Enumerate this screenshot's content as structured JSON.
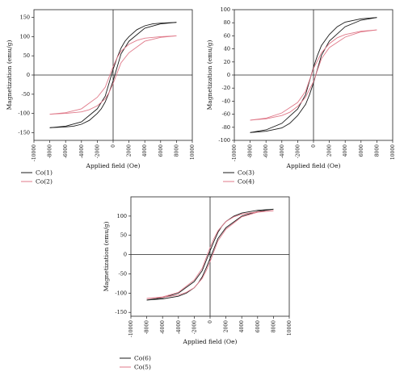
{
  "chart_data": [
    {
      "type": "line",
      "xlabel": "Applied field (Oe)",
      "ylabel": "Magnetization (emu/g)",
      "xlim": [
        -10000,
        10000
      ],
      "ylim": [
        -170,
        170
      ],
      "xticks": [
        "-10000",
        "-8000",
        "-6000",
        "-4000",
        "-2000",
        "0",
        "2000",
        "4000",
        "6000",
        "8000",
        "10000"
      ],
      "yticks": [
        "-150",
        "-100",
        "-50",
        "0",
        "50",
        "100",
        "150"
      ],
      "legend_position": "bottom-left",
      "series": [
        {
          "name": "Co(1)",
          "color": "#1a1a1a",
          "upper": [
            [
              -8000,
              -137
            ],
            [
              -6000,
              -133
            ],
            [
              -4000,
              -122
            ],
            [
              -2000,
              -88
            ],
            [
              -1000,
              -55
            ],
            [
              0,
              15
            ],
            [
              500,
              45
            ],
            [
              1000,
              70
            ],
            [
              1500,
              88
            ],
            [
              2000,
              100
            ],
            [
              3000,
              118
            ],
            [
              4000,
              128
            ],
            [
              5000,
              133
            ],
            [
              6000,
              135
            ],
            [
              8000,
              137
            ]
          ],
          "lower": [
            [
              -8000,
              -137
            ],
            [
              -6000,
              -135
            ],
            [
              -5000,
              -133
            ],
            [
              -4000,
              -128
            ],
            [
              -3000,
              -118
            ],
            [
              -2000,
              -100
            ],
            [
              -1500,
              -88
            ],
            [
              -1000,
              -70
            ],
            [
              -500,
              -45
            ],
            [
              0,
              -15
            ],
            [
              1000,
              55
            ],
            [
              2000,
              88
            ],
            [
              4000,
              122
            ],
            [
              6000,
              133
            ],
            [
              8000,
              137
            ]
          ]
        },
        {
          "name": "Co(2)",
          "color": "#e07a8a",
          "upper": [
            [
              -8000,
              -102
            ],
            [
              -6000,
              -98
            ],
            [
              -4000,
              -88
            ],
            [
              -2000,
              -58
            ],
            [
              -1000,
              -32
            ],
            [
              0,
              22
            ],
            [
              500,
              45
            ],
            [
              1000,
              62
            ],
            [
              2000,
              80
            ],
            [
              3000,
              90
            ],
            [
              4000,
              96
            ],
            [
              6000,
              100
            ],
            [
              8000,
              102
            ]
          ],
          "lower": [
            [
              -8000,
              -102
            ],
            [
              -6000,
              -100
            ],
            [
              -4000,
              -96
            ],
            [
              -3000,
              -90
            ],
            [
              -2000,
              -80
            ],
            [
              -1000,
              -62
            ],
            [
              -500,
              -45
            ],
            [
              0,
              -22
            ],
            [
              1000,
              32
            ],
            [
              2000,
              58
            ],
            [
              4000,
              88
            ],
            [
              6000,
              98
            ],
            [
              8000,
              102
            ]
          ]
        }
      ]
    },
    {
      "type": "line",
      "xlabel": "Applied field (Oe)",
      "ylabel": "Magnetization (emu/g)",
      "xlim": [
        -10000,
        10000
      ],
      "ylim": [
        -100,
        100
      ],
      "xticks": [
        "-10000",
        "-8000",
        "-6000",
        "-4000",
        "-2000",
        "0",
        "2000",
        "4000",
        "6000",
        "8000",
        "10000"
      ],
      "yticks": [
        "-100",
        "-80",
        "-60",
        "-40",
        "-20",
        "0",
        "20",
        "40",
        "60",
        "80",
        "100"
      ],
      "legend_position": "bottom-left",
      "series": [
        {
          "name": "Co(3)",
          "color": "#1a1a1a",
          "upper": [
            [
              -8000,
              -88
            ],
            [
              -6000,
              -84
            ],
            [
              -4000,
              -74
            ],
            [
              -2000,
              -52
            ],
            [
              -1000,
              -30
            ],
            [
              0,
              12
            ],
            [
              500,
              30
            ],
            [
              1000,
              45
            ],
            [
              2000,
              62
            ],
            [
              3000,
              74
            ],
            [
              4000,
              81
            ],
            [
              6000,
              86
            ],
            [
              8000,
              88
            ]
          ],
          "lower": [
            [
              -8000,
              -88
            ],
            [
              -6000,
              -86
            ],
            [
              -4000,
              -81
            ],
            [
              -3000,
              -74
            ],
            [
              -2000,
              -62
            ],
            [
              -1000,
              -45
            ],
            [
              -500,
              -30
            ],
            [
              0,
              -12
            ],
            [
              1000,
              30
            ],
            [
              2000,
              52
            ],
            [
              4000,
              74
            ],
            [
              6000,
              84
            ],
            [
              8000,
              88
            ]
          ]
        },
        {
          "name": "Co(4)",
          "color": "#e07a8a",
          "upper": [
            [
              -8000,
              -69
            ],
            [
              -6000,
              -66
            ],
            [
              -4000,
              -58
            ],
            [
              -2000,
              -42
            ],
            [
              -1000,
              -25
            ],
            [
              0,
              10
            ],
            [
              500,
              22
            ],
            [
              1000,
              34
            ],
            [
              2000,
              48
            ],
            [
              3000,
              57
            ],
            [
              4000,
              62
            ],
            [
              6000,
              67
            ],
            [
              8000,
              69
            ]
          ],
          "lower": [
            [
              -8000,
              -69
            ],
            [
              -6000,
              -67
            ],
            [
              -4000,
              -62
            ],
            [
              -3000,
              -57
            ],
            [
              -2000,
              -48
            ],
            [
              -1000,
              -34
            ],
            [
              -500,
              -22
            ],
            [
              0,
              -10
            ],
            [
              1000,
              25
            ],
            [
              2000,
              42
            ],
            [
              4000,
              58
            ],
            [
              6000,
              66
            ],
            [
              8000,
              69
            ]
          ]
        }
      ]
    },
    {
      "type": "line",
      "xlabel": "Applied field (Oe)",
      "ylabel": "Magnetization (emu/g)",
      "xlim": [
        -10000,
        10000
      ],
      "ylim": [
        -160,
        150
      ],
      "xticks": [
        "-10000",
        "-8000",
        "-6000",
        "-4000",
        "-2000",
        "0",
        "2000",
        "4000",
        "6000",
        "8000",
        "10000"
      ],
      "yticks": [
        "-150",
        "-100",
        "-50",
        "0",
        "50",
        "100"
      ],
      "legend_position": "bottom-left",
      "series": [
        {
          "name": "Co(6)",
          "color": "#1a1a1a",
          "upper": [
            [
              -8000,
              -118
            ],
            [
              -6000,
              -112
            ],
            [
              -4000,
              -100
            ],
            [
              -2000,
              -70
            ],
            [
              -1000,
              -42
            ],
            [
              0,
              10
            ],
            [
              500,
              35
            ],
            [
              1000,
              58
            ],
            [
              1500,
              74
            ],
            [
              2000,
              86
            ],
            [
              3000,
              100
            ],
            [
              4000,
              108
            ],
            [
              6000,
              115
            ],
            [
              8000,
              118
            ]
          ],
          "lower": [
            [
              -8000,
              -118
            ],
            [
              -6000,
              -115
            ],
            [
              -4000,
              -108
            ],
            [
              -3000,
              -100
            ],
            [
              -2000,
              -86
            ],
            [
              -1500,
              -74
            ],
            [
              -1000,
              -58
            ],
            [
              -500,
              -35
            ],
            [
              0,
              -10
            ],
            [
              1000,
              42
            ],
            [
              2000,
              70
            ],
            [
              4000,
              100
            ],
            [
              6000,
              112
            ],
            [
              8000,
              118
            ]
          ]
        },
        {
          "name": "Co(5)",
          "color": "#e07a8a",
          "upper": [
            [
              -8000,
              -114
            ],
            [
              -6000,
              -110
            ],
            [
              -4000,
              -98
            ],
            [
              -2000,
              -66
            ],
            [
              -1000,
              -36
            ],
            [
              0,
              18
            ],
            [
              500,
              42
            ],
            [
              1000,
              62
            ],
            [
              2000,
              86
            ],
            [
              3000,
              98
            ],
            [
              4000,
              105
            ],
            [
              6000,
              111
            ],
            [
              8000,
              114
            ]
          ],
          "lower": [
            [
              -8000,
              -114
            ],
            [
              -6000,
              -111
            ],
            [
              -4000,
              -105
            ],
            [
              -3000,
              -98
            ],
            [
              -2000,
              -86
            ],
            [
              -1000,
              -62
            ],
            [
              -500,
              -42
            ],
            [
              0,
              -18
            ],
            [
              1000,
              36
            ],
            [
              2000,
              66
            ],
            [
              4000,
              98
            ],
            [
              6000,
              110
            ],
            [
              8000,
              114
            ]
          ]
        }
      ]
    }
  ]
}
